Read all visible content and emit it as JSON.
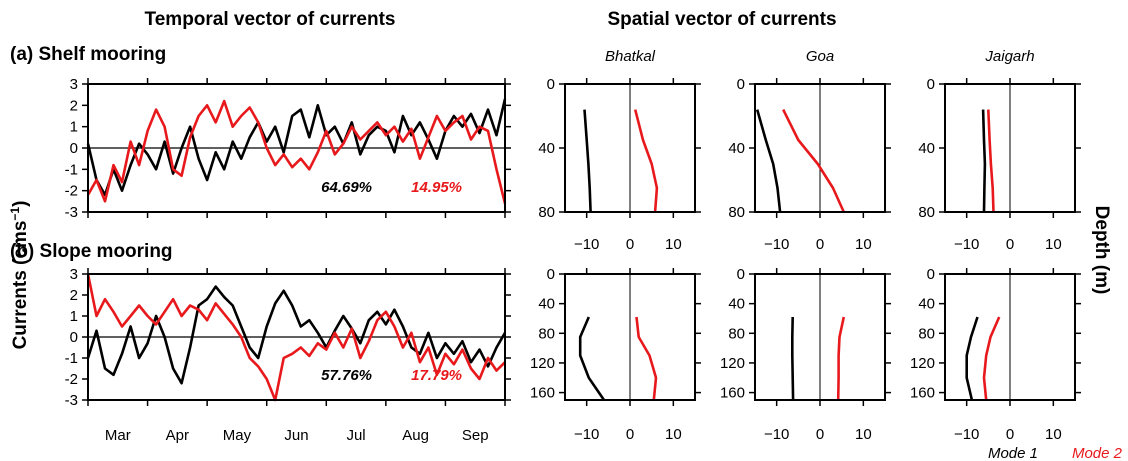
{
  "titles": {
    "left": "Temporal vector of currents",
    "right": "Spatial vector of currents"
  },
  "y_label_left": {
    "main": "Currents (cms",
    "sup": "−1",
    "close": ")"
  },
  "y_label_right": "Depth (m)",
  "legend": {
    "mode1": "Mode 1",
    "mode2": "Mode 2"
  },
  "colors": {
    "mode1": "#000000",
    "mode2": "#e8191c",
    "background": "#ffffff"
  },
  "chart_data": [
    {
      "id": "shelf-temporal",
      "type": "line",
      "title": "(a) Shelf mooring",
      "ylabel": "Currents (cms−1)",
      "ylim": [
        -3,
        3
      ],
      "yticks": [
        -3,
        -2,
        -1,
        0,
        1,
        2,
        3
      ],
      "x_months": [
        "Mar",
        "Apr",
        "May",
        "Jun",
        "Jul",
        "Aug",
        "Sep"
      ],
      "x_range_days": [
        0,
        196
      ],
      "variance_labels": {
        "mode1": "64.69%",
        "mode2": "14.95%"
      },
      "series": [
        {
          "name": "Mode 1",
          "x": [
            0,
            4,
            8,
            12,
            16,
            20,
            24,
            28,
            32,
            36,
            40,
            44,
            48,
            52,
            56,
            60,
            64,
            68,
            72,
            76,
            80,
            84,
            88,
            92,
            96,
            100,
            104,
            108,
            112,
            116,
            120,
            124,
            128,
            132,
            136,
            140,
            144,
            148,
            152,
            156,
            160,
            164,
            168,
            172,
            176,
            180,
            184,
            188,
            192,
            196
          ],
          "y": [
            0.2,
            -1.5,
            -2.2,
            -1.0,
            -2.0,
            -0.8,
            0.2,
            -0.3,
            -1.0,
            0.3,
            -1.2,
            0.0,
            1.0,
            -0.5,
            -1.5,
            -0.2,
            -1.0,
            0.3,
            -0.5,
            0.5,
            1.2,
            0.3,
            1.0,
            -0.2,
            1.5,
            1.8,
            0.5,
            2.0,
            0.6,
            1.0,
            0.2,
            1.2,
            -0.3,
            0.6,
            1.0,
            0.8,
            -0.2,
            1.5,
            0.6,
            1.2,
            0.4,
            -0.5,
            0.8,
            1.5,
            1.0,
            1.6,
            0.7,
            1.8,
            0.6,
            2.3
          ]
        },
        {
          "name": "Mode 2",
          "x": [
            0,
            4,
            8,
            12,
            16,
            20,
            24,
            28,
            32,
            36,
            40,
            44,
            48,
            52,
            56,
            60,
            64,
            68,
            72,
            76,
            80,
            84,
            88,
            92,
            96,
            100,
            104,
            108,
            112,
            116,
            120,
            124,
            128,
            132,
            136,
            140,
            144,
            148,
            152,
            156,
            160,
            164,
            168,
            172,
            176,
            180,
            184,
            188,
            192,
            196
          ],
          "y": [
            -2.2,
            -1.5,
            -2.5,
            -0.8,
            -1.6,
            0.3,
            -0.8,
            0.8,
            1.8,
            1.0,
            -1.0,
            -1.3,
            0.5,
            1.5,
            2.0,
            1.2,
            2.2,
            1.0,
            1.5,
            1.9,
            1.2,
            0.0,
            -0.8,
            -0.3,
            -0.9,
            -0.5,
            -1.0,
            -0.2,
            0.8,
            -0.3,
            0.2,
            1.0,
            0.4,
            0.8,
            1.2,
            0.6,
            1.0,
            0.3,
            0.9,
            -0.5,
            0.5,
            1.5,
            0.8,
            1.2,
            1.5,
            0.4,
            1.0,
            0.8,
            -1.0,
            -2.6
          ]
        }
      ]
    },
    {
      "id": "slope-temporal",
      "type": "line",
      "title": "(b) Slope mooring",
      "ylabel": "Currents (cms−1)",
      "ylim": [
        -3,
        3
      ],
      "yticks": [
        -3,
        -2,
        -1,
        0,
        1,
        2,
        3
      ],
      "x_months": [
        "Mar",
        "Apr",
        "May",
        "Jun",
        "Jul",
        "Aug",
        "Sep"
      ],
      "x_range_days": [
        0,
        196
      ],
      "variance_labels": {
        "mode1": "57.76%",
        "mode2": "17.79%"
      },
      "series": [
        {
          "name": "Mode 1",
          "x": [
            0,
            4,
            8,
            12,
            16,
            20,
            24,
            28,
            32,
            36,
            40,
            44,
            48,
            52,
            56,
            60,
            64,
            68,
            72,
            76,
            80,
            84,
            88,
            92,
            96,
            100,
            104,
            108,
            112,
            116,
            120,
            124,
            128,
            132,
            136,
            140,
            144,
            148,
            152,
            156,
            160,
            164,
            168,
            172,
            176,
            180,
            184,
            188,
            192,
            196
          ],
          "y": [
            -1.0,
            0.3,
            -1.5,
            -1.8,
            -0.8,
            0.5,
            -1.0,
            -0.3,
            1.0,
            0.0,
            -1.5,
            -2.2,
            -0.5,
            1.5,
            1.8,
            2.4,
            1.9,
            1.5,
            0.5,
            -0.5,
            -1.0,
            0.5,
            1.6,
            2.2,
            1.5,
            0.5,
            0.8,
            0.2,
            -0.5,
            0.3,
            1.0,
            0.4,
            -0.3,
            0.8,
            1.2,
            0.6,
            1.3,
            0.5,
            -0.5,
            -0.8,
            0.2,
            -1.0,
            -0.3,
            -0.8,
            -0.2,
            -1.2,
            -0.6,
            -1.4,
            -0.5,
            0.2
          ]
        },
        {
          "name": "Mode 2",
          "x": [
            0,
            4,
            8,
            12,
            16,
            20,
            24,
            28,
            32,
            36,
            40,
            44,
            48,
            52,
            56,
            60,
            64,
            68,
            72,
            76,
            80,
            84,
            88,
            92,
            96,
            100,
            104,
            108,
            112,
            116,
            120,
            124,
            128,
            132,
            136,
            140,
            144,
            148,
            152,
            156,
            160,
            164,
            168,
            172,
            176,
            180,
            184,
            188,
            192,
            196
          ],
          "y": [
            3.0,
            1.0,
            1.8,
            1.2,
            0.5,
            1.0,
            1.5,
            1.0,
            0.6,
            1.2,
            1.8,
            1.0,
            1.5,
            1.3,
            0.8,
            1.6,
            1.1,
            0.6,
            0.0,
            -1.0,
            -1.4,
            -2.0,
            -3.0,
            -1.0,
            -0.8,
            -0.5,
            -0.9,
            -0.3,
            -0.6,
            0.2,
            -0.5,
            0.4,
            -1.0,
            -0.2,
            0.8,
            1.2,
            0.5,
            -0.5,
            0.2,
            -1.2,
            -0.5,
            -1.8,
            -0.8,
            -1.3,
            -0.6,
            -1.5,
            -2.0,
            -1.0,
            -1.6,
            -1.2
          ]
        }
      ]
    },
    {
      "id": "shelf-bhatkal-spatial",
      "type": "line",
      "title": "Bhatkal",
      "xlim": [
        -15,
        15
      ],
      "xticks": [
        -10,
        0,
        10
      ],
      "ylim": [
        80,
        0
      ],
      "yticks": [
        0,
        40,
        80
      ],
      "series": [
        {
          "name": "Mode 1",
          "x": [
            -10.5,
            -10.0,
            -9.6,
            -9.3,
            -9.1
          ],
          "depth": [
            16,
            35,
            50,
            65,
            80
          ]
        },
        {
          "name": "Mode 2",
          "x": [
            1.2,
            3.0,
            5.0,
            6.2,
            5.8
          ],
          "depth": [
            16,
            35,
            50,
            65,
            80
          ]
        }
      ]
    },
    {
      "id": "shelf-goa-spatial",
      "type": "line",
      "title": "Goa",
      "xlim": [
        -15,
        15
      ],
      "xticks": [
        -10,
        0,
        10
      ],
      "ylim": [
        80,
        0
      ],
      "yticks": [
        0,
        40,
        80
      ],
      "series": [
        {
          "name": "Mode 1",
          "x": [
            -14.5,
            -12.5,
            -10.8,
            -9.8,
            -9.2
          ],
          "depth": [
            16,
            35,
            50,
            65,
            80
          ]
        },
        {
          "name": "Mode 2",
          "x": [
            -8.5,
            -5.0,
            -0.5,
            3.0,
            5.5
          ],
          "depth": [
            16,
            35,
            50,
            65,
            80
          ]
        }
      ]
    },
    {
      "id": "shelf-jaigarh-spatial",
      "type": "line",
      "title": "Jaigarh",
      "xlim": [
        -15,
        15
      ],
      "xticks": [
        -10,
        0,
        10
      ],
      "ylim": [
        80,
        0
      ],
      "yticks": [
        0,
        40,
        80
      ],
      "series": [
        {
          "name": "Mode 1",
          "x": [
            -6.2,
            -6.0,
            -5.8,
            -5.9,
            -6.0
          ],
          "depth": [
            16,
            35,
            50,
            65,
            80
          ]
        },
        {
          "name": "Mode 2",
          "x": [
            -5.0,
            -4.7,
            -4.4,
            -4.0,
            -3.8
          ],
          "depth": [
            16,
            35,
            50,
            65,
            80
          ]
        }
      ]
    },
    {
      "id": "slope-bhatkal-spatial",
      "type": "line",
      "xlim": [
        -15,
        15
      ],
      "xticks": [
        -10,
        0,
        10
      ],
      "ylim": [
        170,
        0
      ],
      "yticks": [
        0,
        40,
        80,
        120,
        160
      ],
      "series": [
        {
          "name": "Mode 1",
          "x": [
            -9.5,
            -11.5,
            -11.5,
            -9.5,
            -6.0
          ],
          "depth": [
            58,
            85,
            110,
            140,
            170
          ]
        },
        {
          "name": "Mode 2",
          "x": [
            1.5,
            2.0,
            4.5,
            6.0,
            5.5
          ],
          "depth": [
            58,
            85,
            110,
            140,
            170
          ]
        }
      ]
    },
    {
      "id": "slope-goa-spatial",
      "type": "line",
      "xlim": [
        -15,
        15
      ],
      "xticks": [
        -10,
        0,
        10
      ],
      "ylim": [
        170,
        0
      ],
      "yticks": [
        0,
        40,
        80,
        120,
        160
      ],
      "series": [
        {
          "name": "Mode 1",
          "x": [
            -6.3,
            -6.4,
            -6.4,
            -6.3,
            -6.2
          ],
          "depth": [
            58,
            85,
            110,
            140,
            170
          ]
        },
        {
          "name": "Mode 2",
          "x": [
            5.5,
            4.5,
            4.3,
            4.3,
            4.2
          ],
          "depth": [
            58,
            85,
            110,
            140,
            170
          ]
        }
      ]
    },
    {
      "id": "slope-jaigarh-spatial",
      "type": "line",
      "xlim": [
        -15,
        15
      ],
      "xticks": [
        -10,
        0,
        10
      ],
      "ylim": [
        170,
        0
      ],
      "yticks": [
        0,
        40,
        80,
        120,
        160
      ],
      "series": [
        {
          "name": "Mode 1",
          "x": [
            -7.5,
            -9.0,
            -10.0,
            -10.0,
            -8.8
          ],
          "depth": [
            58,
            85,
            110,
            140,
            170
          ]
        },
        {
          "name": "Mode 2",
          "x": [
            -2.5,
            -4.5,
            -5.5,
            -6.0,
            -5.5
          ],
          "depth": [
            58,
            85,
            110,
            140,
            170
          ]
        }
      ]
    }
  ]
}
